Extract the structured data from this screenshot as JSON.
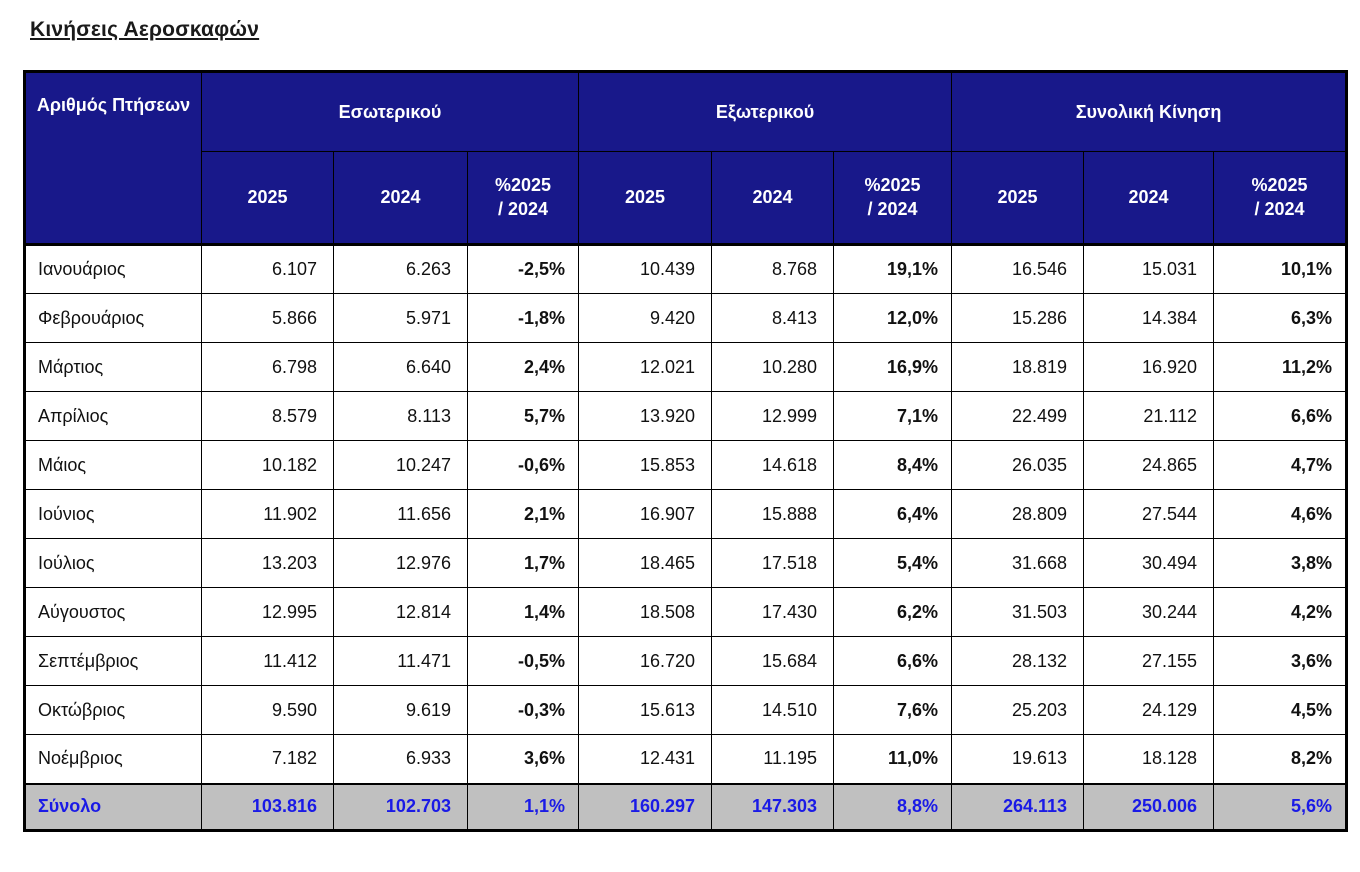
{
  "page": {
    "title": "Κινήσεις Αεροσκαφών"
  },
  "colors": {
    "header_bg": "#18188a",
    "header_text": "#ffffff",
    "total_bg": "#c0c0c0",
    "total_text": "#1a1ae6",
    "border": "#000000",
    "body_bg": "#ffffff",
    "body_text": "#111111"
  },
  "table": {
    "corner_header": "Αριθμός Πτήσεων",
    "groups": [
      {
        "label": "Εσωτερικού"
      },
      {
        "label": "Εξωτερικού"
      },
      {
        "label": "Συνολική Κίνηση"
      }
    ],
    "sub_headers": {
      "y2025": "2025",
      "y2024": "2024",
      "pct": "%2025\n/ 2024"
    },
    "rows": [
      {
        "label": "Ιανουάριος",
        "d2025": "6.107",
        "d2024": "6.263",
        "dpct": "-2,5%",
        "e2025": "10.439",
        "e2024": "8.768",
        "epct": "19,1%",
        "t2025": "16.546",
        "t2024": "15.031",
        "tpct": "10,1%"
      },
      {
        "label": "Φεβρουάριος",
        "d2025": "5.866",
        "d2024": "5.971",
        "dpct": "-1,8%",
        "e2025": "9.420",
        "e2024": "8.413",
        "epct": "12,0%",
        "t2025": "15.286",
        "t2024": "14.384",
        "tpct": "6,3%"
      },
      {
        "label": "Μάρτιος",
        "d2025": "6.798",
        "d2024": "6.640",
        "dpct": "2,4%",
        "e2025": "12.021",
        "e2024": "10.280",
        "epct": "16,9%",
        "t2025": "18.819",
        "t2024": "16.920",
        "tpct": "11,2%"
      },
      {
        "label": "Απρίλιος",
        "d2025": "8.579",
        "d2024": "8.113",
        "dpct": "5,7%",
        "e2025": "13.920",
        "e2024": "12.999",
        "epct": "7,1%",
        "t2025": "22.499",
        "t2024": "21.112",
        "tpct": "6,6%"
      },
      {
        "label": "Μάιος",
        "d2025": "10.182",
        "d2024": "10.247",
        "dpct": "-0,6%",
        "e2025": "15.853",
        "e2024": "14.618",
        "epct": "8,4%",
        "t2025": "26.035",
        "t2024": "24.865",
        "tpct": "4,7%"
      },
      {
        "label": "Ιούνιος",
        "d2025": "11.902",
        "d2024": "11.656",
        "dpct": "2,1%",
        "e2025": "16.907",
        "e2024": "15.888",
        "epct": "6,4%",
        "t2025": "28.809",
        "t2024": "27.544",
        "tpct": "4,6%"
      },
      {
        "label": "Ιούλιος",
        "d2025": "13.203",
        "d2024": "12.976",
        "dpct": "1,7%",
        "e2025": "18.465",
        "e2024": "17.518",
        "epct": "5,4%",
        "t2025": "31.668",
        "t2024": "30.494",
        "tpct": "3,8%"
      },
      {
        "label": "Αύγουστος",
        "d2025": "12.995",
        "d2024": "12.814",
        "dpct": "1,4%",
        "e2025": "18.508",
        "e2024": "17.430",
        "epct": "6,2%",
        "t2025": "31.503",
        "t2024": "30.244",
        "tpct": "4,2%"
      },
      {
        "label": "Σεπτέμβριος",
        "d2025": "11.412",
        "d2024": "11.471",
        "dpct": "-0,5%",
        "e2025": "16.720",
        "e2024": "15.684",
        "epct": "6,6%",
        "t2025": "28.132",
        "t2024": "27.155",
        "tpct": "3,6%"
      },
      {
        "label": "Οκτώβριος",
        "d2025": "9.590",
        "d2024": "9.619",
        "dpct": "-0,3%",
        "e2025": "15.613",
        "e2024": "14.510",
        "epct": "7,6%",
        "t2025": "25.203",
        "t2024": "24.129",
        "tpct": "4,5%"
      },
      {
        "label": "Νοέμβριος",
        "d2025": "7.182",
        "d2024": "6.933",
        "dpct": "3,6%",
        "e2025": "12.431",
        "e2024": "11.195",
        "epct": "11,0%",
        "t2025": "19.613",
        "t2024": "18.128",
        "tpct": "8,2%"
      },
      {
        "label": "Σύνολο",
        "is_total": true,
        "d2025": "103.816",
        "d2024": "102.703",
        "dpct": "1,1%",
        "e2025": "160.297",
        "e2024": "147.303",
        "epct": "8,8%",
        "t2025": "264.113",
        "t2024": "250.006",
        "tpct": "5,6%"
      }
    ]
  }
}
